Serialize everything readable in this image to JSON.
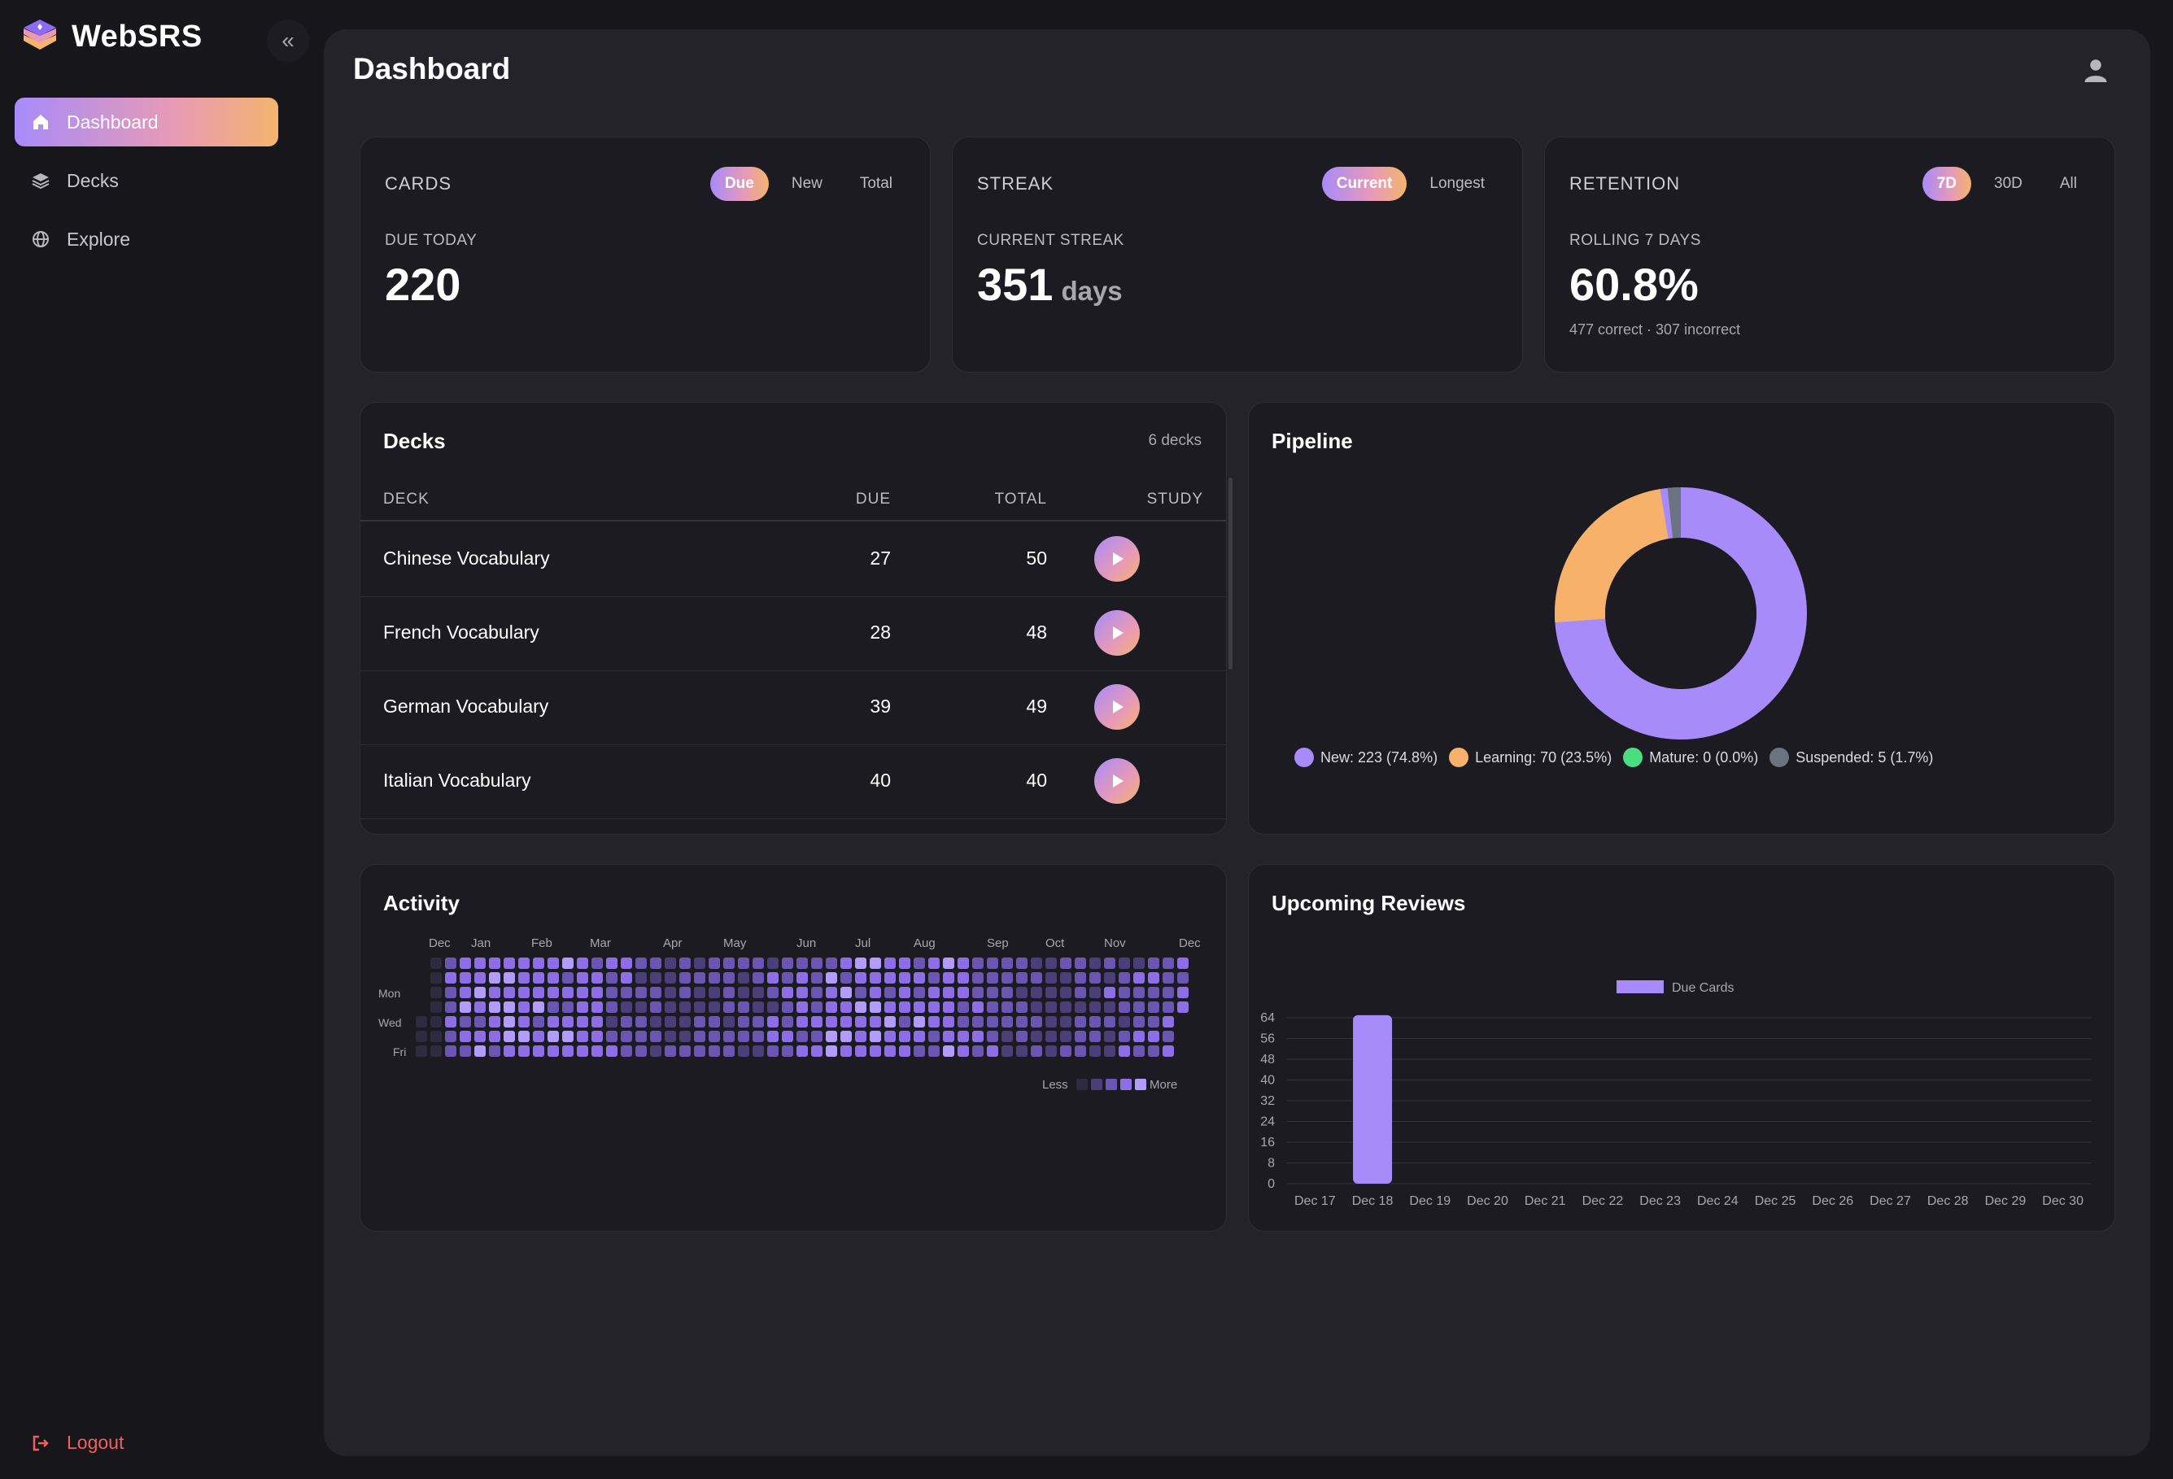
{
  "app": {
    "name": "WebSRS"
  },
  "sidebar": {
    "items": [
      {
        "label": "Dashboard",
        "icon": "home-icon",
        "active": true
      },
      {
        "label": "Decks",
        "icon": "layers-icon",
        "active": false
      },
      {
        "label": "Explore",
        "icon": "globe-icon",
        "active": false
      }
    ],
    "logout_label": "Logout"
  },
  "header": {
    "title": "Dashboard"
  },
  "stats": {
    "cards": {
      "title": "CARDS",
      "tabs": [
        "Due",
        "New",
        "Total"
      ],
      "active_tab": "Due",
      "sub": "DUE TODAY",
      "value": "220"
    },
    "streak": {
      "title": "STREAK",
      "tabs": [
        "Current",
        "Longest"
      ],
      "active_tab": "Current",
      "sub": "CURRENT STREAK",
      "value": "351",
      "unit": "days"
    },
    "retention": {
      "title": "RETENTION",
      "tabs": [
        "7D",
        "30D",
        "All"
      ],
      "active_tab": "7D",
      "sub": "ROLLING 7 DAYS",
      "value": "60.8%",
      "note": "477 correct · 307 incorrect"
    }
  },
  "decks": {
    "title": "Decks",
    "count_label": "6 decks",
    "columns": [
      "DECK",
      "DUE",
      "TOTAL",
      "STUDY"
    ],
    "rows": [
      {
        "name": "Chinese Vocabulary",
        "due": "27",
        "total": "50"
      },
      {
        "name": "French Vocabulary",
        "due": "28",
        "total": "48"
      },
      {
        "name": "German Vocabulary",
        "due": "39",
        "total": "49"
      },
      {
        "name": "Italian Vocabulary",
        "due": "40",
        "total": "40"
      }
    ]
  },
  "pipeline": {
    "title": "Pipeline",
    "colors": {
      "new": "#a78bfa",
      "learning": "#f6b26b",
      "mature": "#4ade80",
      "suspended": "#6b7280"
    },
    "legend": [
      "New: 223 (74.8%)",
      "Learning: 70 (23.5%)",
      "Mature: 0 (0.0%)",
      "Suspended: 5 (1.7%)"
    ]
  },
  "activity": {
    "title": "Activity",
    "months": [
      "Dec",
      "Jan",
      "Feb",
      "Mar",
      "Apr",
      "May",
      "Jun",
      "Jul",
      "Aug",
      "Sep",
      "Oct",
      "Nov",
      "Dec"
    ],
    "days": [
      "Mon",
      "Wed",
      "Fri"
    ],
    "legend_less": "Less",
    "legend_more": "More"
  },
  "upcoming": {
    "title": "Upcoming Reviews"
  },
  "chart_data": {
    "type": "bar",
    "title": "Upcoming Reviews",
    "series": [
      {
        "name": "Due Cards",
        "values": [
          0,
          65,
          0,
          0,
          0,
          0,
          0,
          0,
          0,
          0,
          0,
          0,
          0,
          0
        ]
      }
    ],
    "categories": [
      "Dec 17",
      "Dec 18",
      "Dec 19",
      "Dec 20",
      "Dec 21",
      "Dec 22",
      "Dec 23",
      "Dec 24",
      "Dec 25",
      "Dec 26",
      "Dec 27",
      "Dec 28",
      "Dec 29",
      "Dec 30"
    ],
    "yticks": [
      "0",
      "8",
      "16",
      "24",
      "32",
      "40",
      "48",
      "56",
      "64"
    ],
    "ylim": [
      0,
      64
    ],
    "color": "#a78bfa",
    "grid": true,
    "legend_position": "top-center"
  }
}
